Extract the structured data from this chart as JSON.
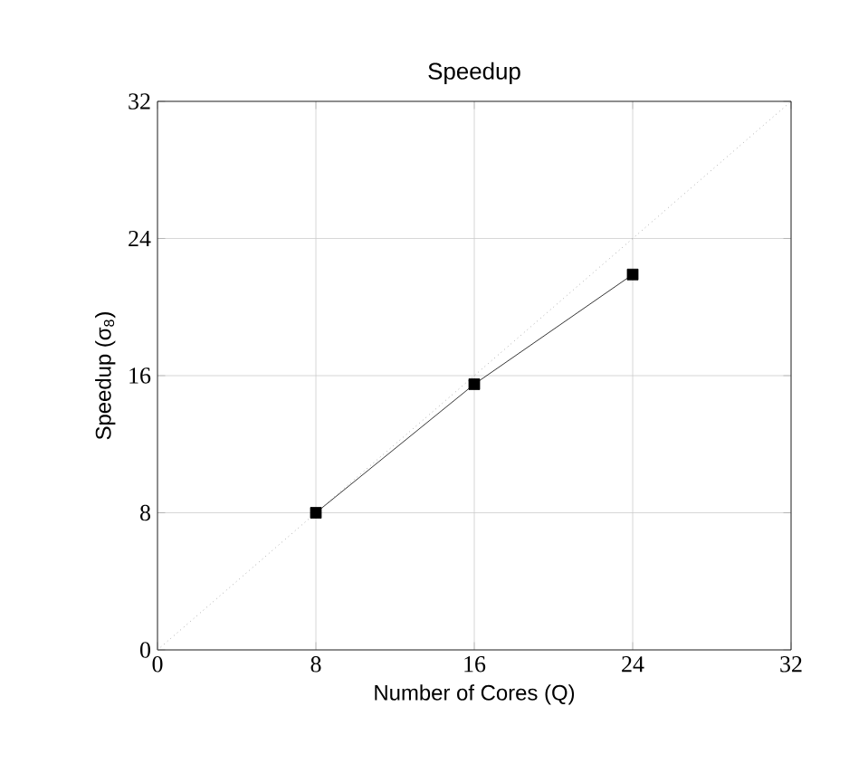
{
  "chart_data": {
    "type": "line",
    "title": "Speedup",
    "xlabel": "Number of Cores (Q)",
    "ylabel": "Speedup (σ$_{8}$)",
    "x": [
      8,
      16,
      24
    ],
    "series": [
      {
        "color": "#000000",
        "values": [
          8,
          15.5,
          21.9
        ],
        "marker": "square",
        "line_style": "solid"
      },
      {
        "type": "line",
        "x": [
          0,
          32
        ],
        "values": [
          0,
          32
        ],
        "color": "#808080",
        "marker": "none",
        "line_style": "dotted"
      }
    ],
    "xlim": [
      0,
      32
    ],
    "ylim": [
      0,
      32
    ],
    "xticks": [
      0,
      8,
      16,
      24,
      32
    ],
    "yticks": [
      0,
      8,
      16,
      24,
      32
    ],
    "grid": true
  }
}
